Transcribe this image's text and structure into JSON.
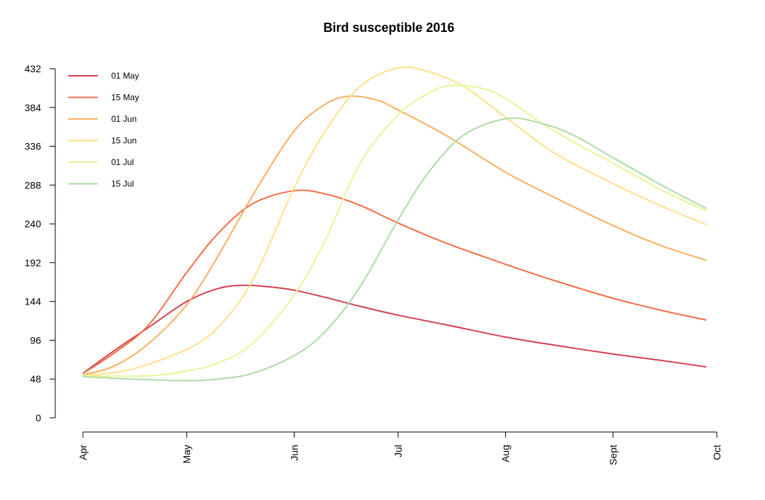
{
  "chart_data": {
    "type": "line",
    "title": "Bird susceptible 2016",
    "xlabel": "",
    "ylabel": "",
    "x_unit": "date",
    "x_ticks": [
      {
        "date": "2016-04-01",
        "label": "Apr"
      },
      {
        "date": "2016-05-01",
        "label": "May"
      },
      {
        "date": "2016-06-01",
        "label": "Jun"
      },
      {
        "date": "2016-07-01",
        "label": "Jul"
      },
      {
        "date": "2016-08-01",
        "label": "Aug"
      },
      {
        "date": "2016-09-01",
        "label": "Sept"
      },
      {
        "date": "2016-10-01",
        "label": "Oct"
      }
    ],
    "y_ticks": [
      0,
      48,
      96,
      144,
      192,
      240,
      288,
      336,
      384,
      432
    ],
    "ylim": [
      0,
      432
    ],
    "grid": false,
    "legend_position": "top-left",
    "series": [
      {
        "name": "01 May",
        "color": "#d53e4f",
        "points": [
          [
            "2016-04-01",
            55
          ],
          [
            "2016-04-10",
            83
          ],
          [
            "2016-04-20",
            112
          ],
          [
            "2016-05-01",
            144
          ],
          [
            "2016-05-10",
            160
          ],
          [
            "2016-05-17",
            164
          ],
          [
            "2016-05-25",
            162
          ],
          [
            "2016-06-01",
            158
          ],
          [
            "2016-06-10",
            149
          ],
          [
            "2016-06-20",
            138
          ],
          [
            "2016-07-01",
            127
          ],
          [
            "2016-07-15",
            115
          ],
          [
            "2016-08-01",
            100
          ],
          [
            "2016-08-15",
            90
          ],
          [
            "2016-09-01",
            79
          ],
          [
            "2016-09-15",
            71
          ],
          [
            "2016-09-28",
            63
          ]
        ]
      },
      {
        "name": "15 May",
        "color": "#f46d43",
        "points": [
          [
            "2016-04-01",
            55
          ],
          [
            "2016-04-10",
            80
          ],
          [
            "2016-04-20",
            115
          ],
          [
            "2016-05-01",
            180
          ],
          [
            "2016-05-10",
            228
          ],
          [
            "2016-05-20",
            265
          ],
          [
            "2016-06-01",
            281
          ],
          [
            "2016-06-10",
            277
          ],
          [
            "2016-06-20",
            263
          ],
          [
            "2016-07-01",
            241
          ],
          [
            "2016-07-15",
            216
          ],
          [
            "2016-08-01",
            190
          ],
          [
            "2016-08-15",
            170
          ],
          [
            "2016-09-01",
            148
          ],
          [
            "2016-09-15",
            133
          ],
          [
            "2016-09-28",
            121
          ]
        ]
      },
      {
        "name": "01 Jun",
        "color": "#fdae61",
        "points": [
          [
            "2016-04-01",
            53
          ],
          [
            "2016-04-10",
            64
          ],
          [
            "2016-04-20",
            92
          ],
          [
            "2016-05-01",
            140
          ],
          [
            "2016-05-10",
            200
          ],
          [
            "2016-05-20",
            275
          ],
          [
            "2016-06-01",
            355
          ],
          [
            "2016-06-10",
            388
          ],
          [
            "2016-06-17",
            398
          ],
          [
            "2016-06-25",
            393
          ],
          [
            "2016-07-01",
            381
          ],
          [
            "2016-07-15",
            349
          ],
          [
            "2016-08-01",
            304
          ],
          [
            "2016-08-15",
            273
          ],
          [
            "2016-09-01",
            238
          ],
          [
            "2016-09-15",
            213
          ],
          [
            "2016-09-28",
            195
          ]
        ]
      },
      {
        "name": "15 Jun",
        "color": "#fee08b",
        "points": [
          [
            "2016-04-01",
            52
          ],
          [
            "2016-04-15",
            60
          ],
          [
            "2016-05-01",
            85
          ],
          [
            "2016-05-10",
            112
          ],
          [
            "2016-05-20",
            170
          ],
          [
            "2016-06-01",
            285
          ],
          [
            "2016-06-10",
            355
          ],
          [
            "2016-06-20",
            410
          ],
          [
            "2016-07-01",
            433
          ],
          [
            "2016-07-10",
            428
          ],
          [
            "2016-07-20",
            410
          ],
          [
            "2016-08-01",
            372
          ],
          [
            "2016-08-15",
            328
          ],
          [
            "2016-09-01",
            290
          ],
          [
            "2016-09-15",
            262
          ],
          [
            "2016-09-28",
            239
          ]
        ]
      },
      {
        "name": "01 Jul",
        "color": "#e6f598",
        "points": [
          [
            "2016-04-01",
            52
          ],
          [
            "2016-04-20",
            52
          ],
          [
            "2016-05-01",
            58
          ],
          [
            "2016-05-10",
            68
          ],
          [
            "2016-05-20",
            92
          ],
          [
            "2016-06-01",
            152
          ],
          [
            "2016-06-10",
            220
          ],
          [
            "2016-06-20",
            315
          ],
          [
            "2016-07-01",
            375
          ],
          [
            "2016-07-10",
            402
          ],
          [
            "2016-07-16",
            411
          ],
          [
            "2016-07-25",
            408
          ],
          [
            "2016-08-01",
            395
          ],
          [
            "2016-08-15",
            355
          ],
          [
            "2016-09-01",
            315
          ],
          [
            "2016-09-15",
            282
          ],
          [
            "2016-09-28",
            256
          ]
        ]
      },
      {
        "name": "15 Jul",
        "color": "#abdda4",
        "points": [
          [
            "2016-04-01",
            51
          ],
          [
            "2016-04-15",
            48
          ],
          [
            "2016-05-01",
            46
          ],
          [
            "2016-05-10",
            48
          ],
          [
            "2016-05-20",
            55
          ],
          [
            "2016-06-01",
            77
          ],
          [
            "2016-06-10",
            107
          ],
          [
            "2016-06-20",
            162
          ],
          [
            "2016-07-01",
            245
          ],
          [
            "2016-07-10",
            305
          ],
          [
            "2016-07-20",
            350
          ],
          [
            "2016-08-01",
            370
          ],
          [
            "2016-08-10",
            366
          ],
          [
            "2016-08-20",
            351
          ],
          [
            "2016-09-01",
            322
          ],
          [
            "2016-09-15",
            288
          ],
          [
            "2016-09-28",
            259
          ]
        ]
      }
    ]
  }
}
